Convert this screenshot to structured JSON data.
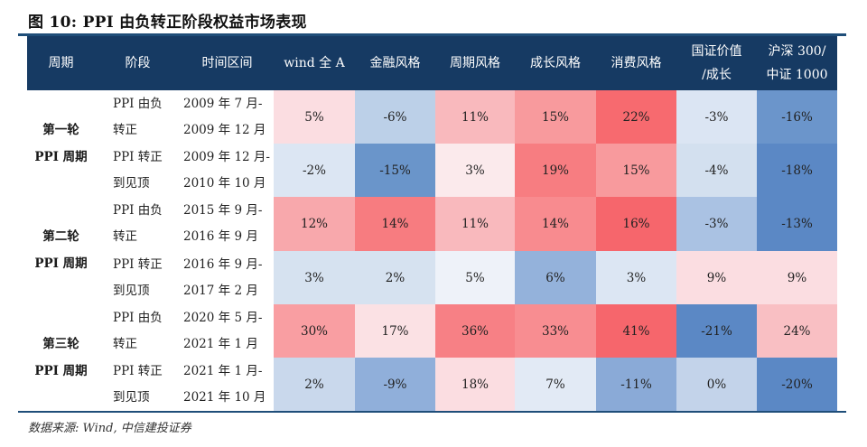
{
  "title": "图 10: PPI 由负转正阶段权益市场表现",
  "header": {
    "columns": [
      "周期",
      "阶段",
      "时间区间",
      "wind 全 A",
      "金融风格",
      "周期风格",
      "成长风格",
      "消费风格",
      "国证价值\n/成长",
      "沪深 300/\n中证 1000"
    ],
    "col8_line1": "国证价值",
    "col8_line2": "/成长",
    "col9_line1": "沪深 300/",
    "col9_line2": "中证 1000"
  },
  "cycles": [
    {
      "line1": "第一轮",
      "line2": "PPI 周期"
    },
    {
      "line1": "第二轮",
      "line2": "PPI 周期"
    },
    {
      "line1": "第三轮",
      "line2": "PPI 周期"
    }
  ],
  "rows": [
    {
      "stage1": "PPI 由负",
      "stage2": "转正",
      "time1": "2009 年 7 月-",
      "time2": "2009 年 12 月",
      "values": [
        "5%",
        "-6%",
        "11%",
        "15%",
        "22%",
        "-3%",
        "-16%"
      ],
      "colors": [
        "#fbdde1",
        "#bcd0e8",
        "#f9b9bd",
        "#f89a9d",
        "#f76a6f",
        "#dbe5f3",
        "#6b95cb"
      ]
    },
    {
      "stage1": "PPI 转正",
      "stage2": "到见顶",
      "time1": "2009 年 12 月-",
      "time2": "2010 年 10 月",
      "values": [
        "-2%",
        "-15%",
        "3%",
        "19%",
        "15%",
        "-4%",
        "-18%"
      ],
      "colors": [
        "#dce6f3",
        "#6a95ca",
        "#fbeaec",
        "#f77d81",
        "#f89a9d",
        "#d3e0ef",
        "#5b88c5"
      ]
    },
    {
      "stage1": "PPI 由负",
      "stage2": "转正",
      "time1": "2015 年 9 月-",
      "time2": "2016 年 9 月",
      "values": [
        "12%",
        "14%",
        "11%",
        "14%",
        "16%",
        "-3%",
        "-13%"
      ],
      "colors": [
        "#f8a8ac",
        "#f77c80",
        "#f9b9bd",
        "#f88b8f",
        "#f6666c",
        "#aac2e3",
        "#5b88c5"
      ]
    },
    {
      "stage1": "PPI 转正",
      "stage2": "到见顶",
      "time1": "2016 年 9 月-",
      "time2": "2017 年 2 月",
      "values": [
        "3%",
        "2%",
        "5%",
        "6%",
        "3%",
        "9%",
        "9%"
      ],
      "colors": [
        "#d6e2f0",
        "#d6e2f0",
        "#eef2f9",
        "#94b2db",
        "#dce6f3",
        "#fbdde1",
        "#fbdde1"
      ]
    },
    {
      "stage1": "PPI 由负",
      "stage2": "转正",
      "time1": "2020 年 5 月-",
      "time2": "2021 年 1 月",
      "values": [
        "30%",
        "17%",
        "36%",
        "33%",
        "41%",
        "-21%",
        "24%"
      ],
      "colors": [
        "#f99ea2",
        "#fbe1e4",
        "#f78085",
        "#f88d91",
        "#f6666c",
        "#5b88c5",
        "#f9bfc3"
      ]
    },
    {
      "stage1": "PPI 转正",
      "stage2": "到见顶",
      "time1": "2021 年 1 月-",
      "time2": "2021 年 10 月",
      "values": [
        "2%",
        "-9%",
        "18%",
        "7%",
        "-11%",
        "0%",
        "-20%"
      ],
      "colors": [
        "#c9d8ec",
        "#90afda",
        "#fbdde1",
        "#e2eaf5",
        "#8aaad7",
        "#c3d3ea",
        "#5b88c5"
      ]
    }
  ],
  "source": "数据来源: Wind, 中信建投证券"
}
